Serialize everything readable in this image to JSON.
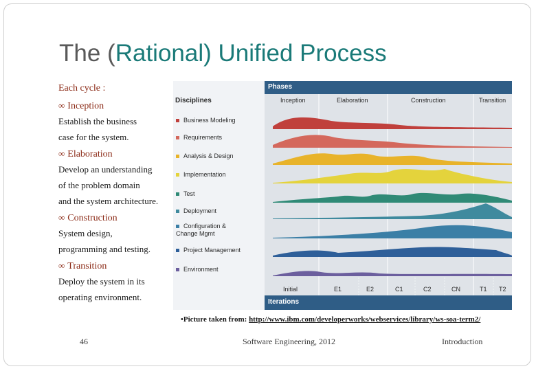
{
  "slide": {
    "title_prefix": "The (",
    "title_accent": "Rational) Unified Process",
    "body": {
      "heading": "Each cycle :",
      "items": [
        {
          "head": "Inception",
          "lines": [
            "Establish the business",
            "case for  the system."
          ]
        },
        {
          "head": "Elaboration",
          "lines": [
            "Develop an  understanding",
            " of the problem domain",
            "and the system architecture."
          ]
        },
        {
          "head": "Construction",
          "lines": [
            "System design,",
            "programming and testing."
          ]
        },
        {
          "head": "Transition",
          "lines": [
            "Deploy the system in its",
            " operating environment."
          ]
        }
      ]
    },
    "figure": {
      "phases_label": "Phases",
      "disciplines_label": "Disciplines",
      "iterations_label": "Iterations",
      "phases": [
        "Inception",
        "Elaboration",
        "Construction",
        "Transition"
      ],
      "disciplines": [
        {
          "label": "Business Modeling",
          "color": "#c0403c"
        },
        {
          "label": "Requirements",
          "color": "#d4685c"
        },
        {
          "label": "Analysis & Design",
          "color": "#e8b32a"
        },
        {
          "label": "Implementation",
          "color": "#e4d33c"
        },
        {
          "label": "Test",
          "color": "#2f8a76"
        },
        {
          "label": "Deployment",
          "color": "#3f8a9e"
        },
        {
          "label": "Configuration &\nChange Mgmt",
          "color": "#3b7fa6"
        },
        {
          "label": "Project Management",
          "color": "#2e5f99"
        },
        {
          "label": "Environment",
          "color": "#6c5f9e"
        }
      ],
      "iterations": [
        "Initial",
        "E1",
        "E2",
        "C1",
        "C2",
        "CN",
        "T1",
        "T2"
      ]
    },
    "caption": {
      "prefix": "•Picture taken from: ",
      "link": "http://www.ibm.com/developerworks/webservices/library/ws-soa-term2/"
    },
    "footer": {
      "page": "46",
      "course": "Software Engineering,   2012",
      "section": "Introduction"
    }
  }
}
